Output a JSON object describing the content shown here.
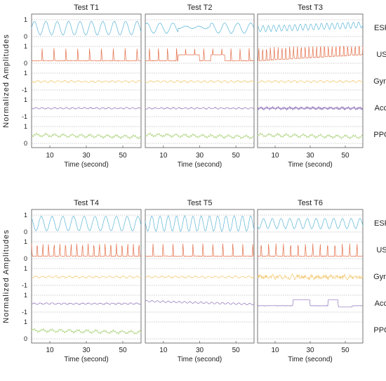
{
  "figure": {
    "y_axis_label": "Normalized Amplitudes",
    "x_axis_label": "Time (second)"
  },
  "chart_data": {
    "type": "line",
    "xlim": [
      0,
      60
    ],
    "xticks": [
      "10",
      "30",
      "50"
    ],
    "signals": [
      {
        "name": "ESP",
        "color": "#5ab4d6",
        "ytick_top": "1",
        "ytick_bottom": "0"
      },
      {
        "name": "US",
        "color": "#e3704a",
        "ytick_top": "1",
        "ytick_bottom": "0"
      },
      {
        "name": "Gyro",
        "color": "#f2c870",
        "ytick_top": "1",
        "ytick_bottom": "-1"
      },
      {
        "name": "Accl",
        "color": "#8e72b8",
        "ytick_top": "1",
        "ytick_bottom": "-1"
      },
      {
        "name": "PPG",
        "color": "#a2cc6c",
        "ytick_top": "1",
        "ytick_bottom": "0"
      }
    ],
    "panels": [
      {
        "title": "Test T1",
        "present": [
          true,
          true,
          true,
          true,
          true
        ]
      },
      {
        "title": "Test T2",
        "present": [
          true,
          true,
          true,
          true,
          true
        ]
      },
      {
        "title": "Test T3",
        "present": [
          true,
          true,
          true,
          true,
          true
        ]
      },
      {
        "title": "Test T4",
        "present": [
          true,
          true,
          true,
          true,
          true
        ]
      },
      {
        "title": "Test T5",
        "present": [
          true,
          true,
          true,
          true,
          false
        ]
      },
      {
        "title": "Test T6",
        "present": [
          true,
          true,
          true,
          true,
          false
        ]
      }
    ]
  }
}
